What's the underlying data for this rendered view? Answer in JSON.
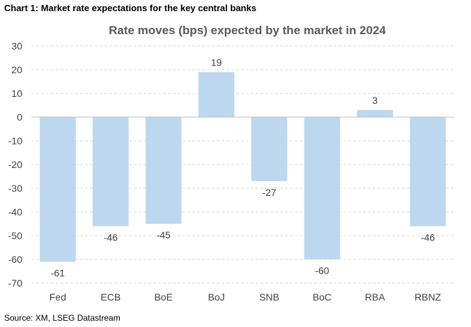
{
  "caption": "Chart 1: Market rate expectations for the key central banks",
  "source": "Source: XM, LSEG Datastream",
  "chart_data": {
    "type": "bar",
    "title": "Rate moves (bps) expected by the market in 2024",
    "categories": [
      "Fed",
      "ECB",
      "BoE",
      "BoJ",
      "SNB",
      "BoC",
      "RBA",
      "RBNZ"
    ],
    "values": [
      -61,
      -46,
      -45,
      19,
      -27,
      -60,
      3,
      -46
    ],
    "ylim": [
      -70,
      30
    ],
    "yticks": [
      30,
      20,
      10,
      0,
      -10,
      -20,
      -30,
      -40,
      -50,
      -60,
      -70
    ],
    "xlabel": "",
    "ylabel": "",
    "grid": true,
    "bar_color": "#bdd7ee",
    "grid_color": "#d9d9d9"
  }
}
